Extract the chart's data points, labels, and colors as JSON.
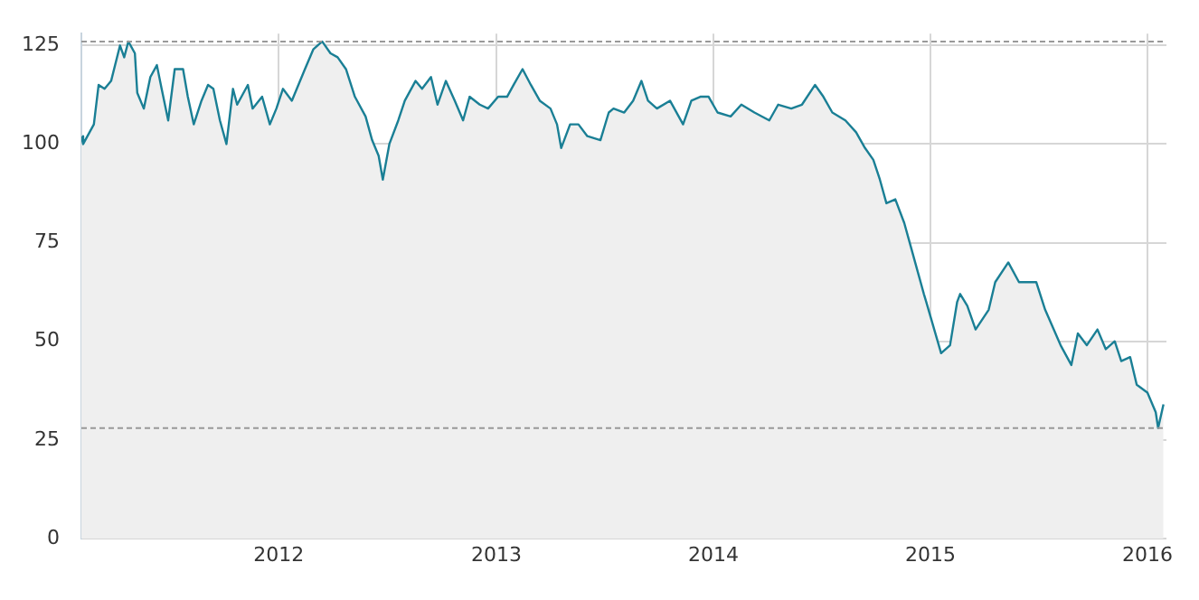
{
  "chart_data": {
    "type": "area",
    "x": [
      "2011-02-03",
      "2011-02-06",
      "2011-02-24",
      "2011-03-04",
      "2011-03-14",
      "2011-03-25",
      "2011-04-09",
      "2011-04-16",
      "2011-04-23",
      "2011-05-04",
      "2011-05-08",
      "2011-05-19",
      "2011-05-30",
      "2011-06-10",
      "2011-06-18",
      "2011-06-29",
      "2011-07-10",
      "2011-07-24",
      "2011-08-01",
      "2011-08-11",
      "2011-08-24",
      "2011-09-04",
      "2011-09-13",
      "2011-09-24",
      "2011-10-05",
      "2011-10-16",
      "2011-10-23",
      "2011-11-10",
      "2011-11-18",
      "2011-12-04",
      "2011-12-17",
      "2011-12-28",
      "2012-01-08",
      "2012-01-23",
      "2012-02-14",
      "2012-02-28",
      "2012-03-14",
      "2012-03-28",
      "2012-04-09",
      "2012-04-23",
      "2012-05-08",
      "2012-05-26",
      "2012-06-06",
      "2012-06-17",
      "2012-06-24",
      "2012-07-05",
      "2012-07-20",
      "2012-07-31",
      "2012-08-18",
      "2012-08-29",
      "2012-09-13",
      "2012-09-24",
      "2012-10-08",
      "2012-10-23",
      "2012-11-06",
      "2012-11-17",
      "2012-12-04",
      "2012-12-18",
      "2013-01-04",
      "2013-01-19",
      "2013-01-30",
      "2013-02-14",
      "2013-02-28",
      "2013-03-15",
      "2013-04-02",
      "2013-04-13",
      "2013-04-20",
      "2013-05-05",
      "2013-05-19",
      "2013-06-03",
      "2013-06-25",
      "2013-07-09",
      "2013-07-17",
      "2013-08-04",
      "2013-08-19",
      "2013-09-02",
      "2013-09-13",
      "2013-09-28",
      "2013-10-20",
      "2013-11-11",
      "2013-11-25",
      "2013-12-10",
      "2013-12-24",
      "2014-01-08",
      "2014-01-30",
      "2014-02-17",
      "2014-03-11",
      "2014-04-05",
      "2014-04-20",
      "2014-05-12",
      "2014-05-30",
      "2014-06-21",
      "2014-07-05",
      "2014-07-20",
      "2014-08-11",
      "2014-08-29",
      "2014-09-13",
      "2014-09-27",
      "2014-10-08",
      "2014-10-19",
      "2014-11-03",
      "2014-11-18",
      "2014-11-29",
      "2014-12-10",
      "2014-12-21",
      "2014-12-25",
      "2015-01-19",
      "2015-02-03",
      "2015-02-15",
      "2015-02-20",
      "2015-03-04",
      "2015-03-18",
      "2015-04-09",
      "2015-04-20",
      "2015-05-12",
      "2015-05-30",
      "2015-06-28",
      "2015-07-13",
      "2015-08-08",
      "2015-08-26",
      "2015-09-06",
      "2015-09-21",
      "2015-10-09",
      "2015-10-23",
      "2015-11-07",
      "2015-11-18",
      "2015-12-03",
      "2015-12-14",
      "2016-01-01",
      "2016-01-15",
      "2016-01-19",
      "2016-01-28"
    ],
    "series": [
      {
        "color": "#1a7f95",
        "values": [
          102,
          100,
          105,
          115,
          114,
          116,
          125,
          122,
          126,
          123,
          113,
          109,
          117,
          120,
          114,
          106,
          119,
          119,
          112,
          105,
          111,
          115,
          114,
          106,
          100,
          114,
          110,
          115,
          109,
          112,
          105,
          109,
          114,
          111,
          119,
          124,
          126,
          123,
          122,
          119,
          112,
          107,
          101,
          97,
          91,
          100,
          106,
          111,
          116,
          114,
          117,
          110,
          116,
          111,
          106,
          112,
          110,
          109,
          112,
          112,
          115,
          119,
          115,
          111,
          109,
          105,
          99,
          105,
          105,
          102,
          101,
          108,
          109,
          108,
          111,
          116,
          111,
          109,
          111,
          105,
          111,
          112,
          112,
          108,
          107,
          110,
          108,
          106,
          110,
          109,
          110,
          115,
          112,
          108,
          106,
          103,
          99,
          96,
          91,
          85,
          86,
          80,
          74,
          68,
          62,
          60,
          47,
          49,
          60,
          62,
          59,
          53,
          58,
          65,
          70,
          65,
          65,
          58,
          49,
          44,
          52,
          49,
          53,
          48,
          50,
          45,
          46,
          39,
          37,
          32,
          28,
          34
        ]
      }
    ],
    "xlim": [
      "2011-02-03",
      "2016-02-02"
    ],
    "xticks": [
      "2012",
      "2013",
      "2014",
      "2015",
      "2016"
    ],
    "ylim": [
      0,
      128
    ],
    "yticks": [
      0,
      25,
      50,
      75,
      100,
      125
    ],
    "grid": true,
    "legend": false,
    "ref_lines": [
      {
        "axis": "y",
        "value": 126,
        "color": "#999999",
        "line_style": "dashed"
      },
      {
        "axis": "y",
        "value": 28,
        "color": "#999999",
        "line_style": "dashed"
      }
    ]
  }
}
